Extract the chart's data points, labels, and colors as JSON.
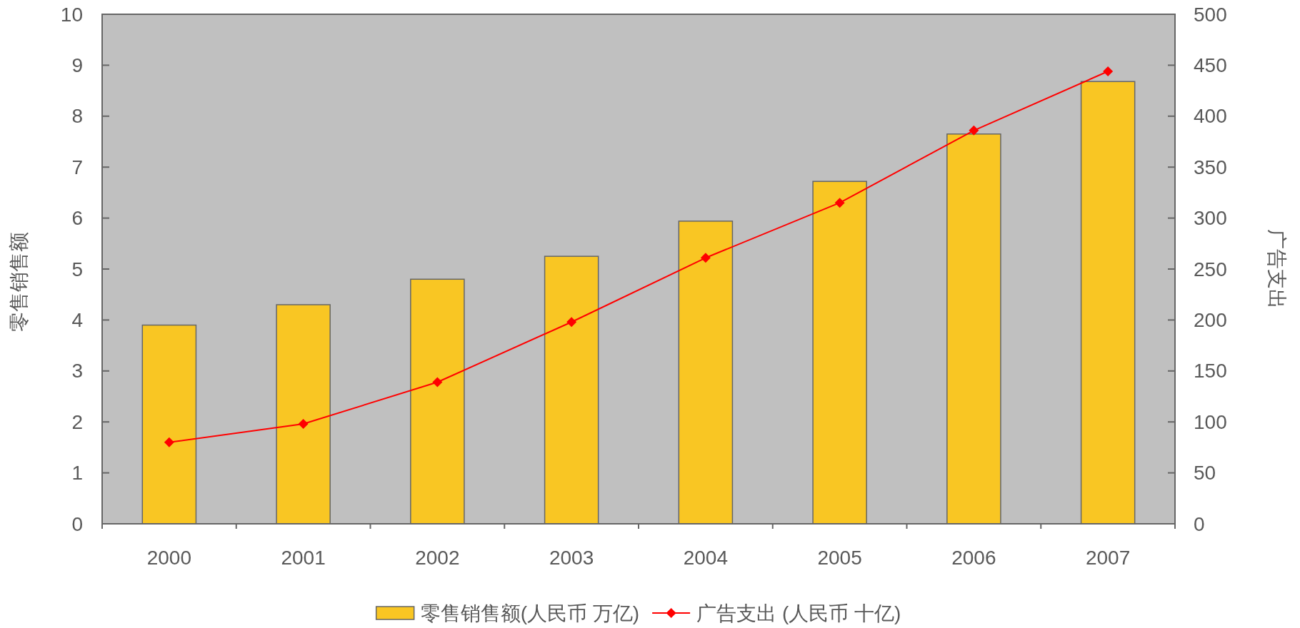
{
  "chart_data": {
    "type": "bar",
    "categories": [
      "2000",
      "2001",
      "2002",
      "2003",
      "2004",
      "2005",
      "2006",
      "2007"
    ],
    "series": [
      {
        "name": "零售销售额(人民币 万亿)",
        "color": "#f9c623",
        "values": [
          3.9,
          4.3,
          4.8,
          5.25,
          5.94,
          6.72,
          7.65,
          8.68
        ]
      },
      {
        "name": "广告支出 (人民币 十亿)",
        "type": "line",
        "axis": "y2",
        "color": "#ff0000",
        "values": [
          80,
          98,
          139,
          198,
          261,
          315,
          386,
          444
        ]
      }
    ],
    "ylabel": "零售销售额",
    "y2label": "广告支出",
    "ylim": [
      0,
      10
    ],
    "yticks": [
      0,
      1,
      2,
      3,
      4,
      5,
      6,
      7,
      8,
      9,
      10
    ],
    "y2lim": [
      0,
      500
    ],
    "y2ticks": [
      0,
      50,
      100,
      150,
      200,
      250,
      300,
      350,
      400,
      450,
      500
    ],
    "marker": "diamond",
    "legend": "bottom"
  }
}
